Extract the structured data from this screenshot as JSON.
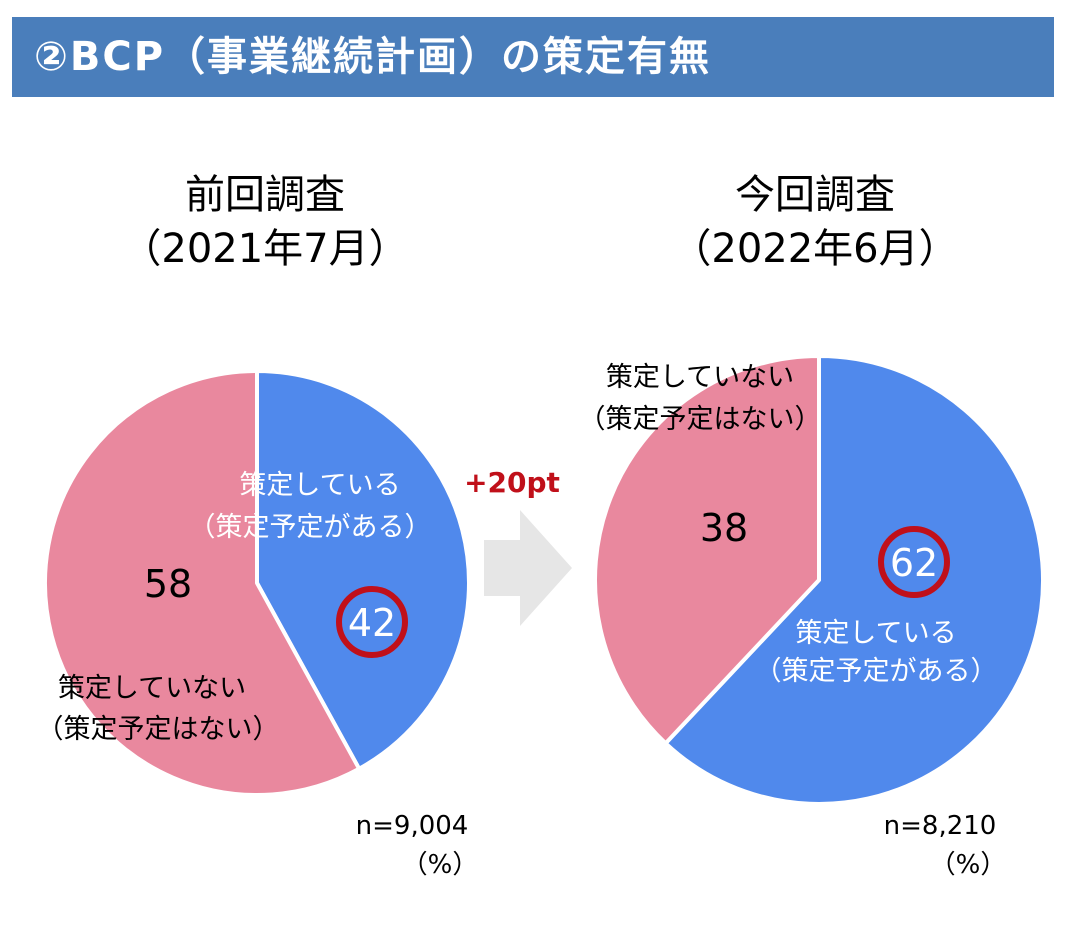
{
  "banner": {
    "title": "②BCP（事業継続計画）の策定有無"
  },
  "arrow": {
    "label": "+20pt"
  },
  "colors": {
    "banner": "#4a7ebb",
    "formulated": "#5089ec",
    "not_formulated": "#e9889e",
    "highlight_ring": "#c0101a",
    "delta_text": "#c0101a",
    "arrow": "#e6e6e6"
  },
  "chart_data": [
    {
      "type": "pie",
      "title_line1": "前回調査",
      "title_line2": "（2021年7月）",
      "slices": [
        {
          "label_line1": "策定している",
          "label_line2": "（策定予定がある）",
          "value": 42,
          "value_label": "42",
          "color": "#5089ec",
          "highlighted": true
        },
        {
          "label_line1": "策定していない",
          "label_line2": "（策定予定はない）",
          "value": 58,
          "value_label": "58",
          "color": "#e9889e",
          "highlighted": false
        }
      ],
      "n_label": "n=9,004",
      "unit_label": "（%）"
    },
    {
      "type": "pie",
      "title_line1": "今回調査",
      "title_line2": "（2022年6月）",
      "slices": [
        {
          "label_line1": "策定している",
          "label_line2": "（策定予定がある）",
          "value": 62,
          "value_label": "62",
          "color": "#5089ec",
          "highlighted": true
        },
        {
          "label_line1": "策定していない",
          "label_line2": "（策定予定はない）",
          "value": 38,
          "value_label": "38",
          "color": "#e9889e",
          "highlighted": false
        }
      ],
      "n_label": "n=8,210",
      "unit_label": "（%）"
    }
  ]
}
